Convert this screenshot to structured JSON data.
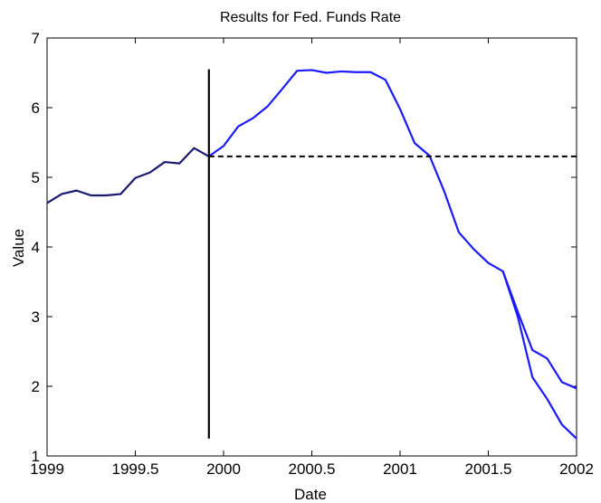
{
  "chart_data": {
    "type": "line",
    "title": "Results for Fed. Funds Rate",
    "xlabel": "Date",
    "ylabel": "Value",
    "xlim": [
      1999,
      2002
    ],
    "ylim": [
      1,
      7
    ],
    "xticks": [
      1999,
      1999.5,
      2000,
      2000.5,
      2001,
      2001.5,
      2002
    ],
    "xtick_labels": [
      "1999",
      "1999.5",
      "2000",
      "2000.5",
      "2001",
      "2001.5",
      "2002"
    ],
    "yticks": [
      1,
      2,
      3,
      4,
      5,
      6,
      7
    ],
    "ytick_labels": [
      "1",
      "2",
      "3",
      "4",
      "5",
      "6",
      "7"
    ],
    "grid": false,
    "colors": {
      "history": "#1a1a6e",
      "forecast": "#1a1aff",
      "reference": "#000000"
    },
    "vertical_line": {
      "x": 1999.917,
      "y_range": [
        1.25,
        6.55
      ]
    },
    "horizontal_reference": {
      "y": 5.3,
      "x_range": [
        1999.917,
        2002
      ]
    },
    "series": [
      {
        "style": "solid",
        "x": [
          1999,
          1999.083,
          1999.167,
          1999.25,
          1999.333,
          1999.417,
          1999.5,
          1999.583,
          1999.667,
          1999.75,
          1999.833,
          1999.917
        ],
        "values": [
          4.63,
          4.76,
          4.81,
          4.74,
          4.74,
          4.76,
          4.99,
          5.07,
          5.22,
          5.2,
          5.42,
          5.3
        ]
      },
      {
        "style": "solid",
        "x": [
          1999.917,
          2000,
          2000.083,
          2000.167,
          2000.25,
          2000.333,
          2000.417,
          2000.5,
          2000.583,
          2000.667,
          2000.75,
          2000.833,
          2000.917,
          2001,
          2001.083,
          2001.167,
          2001.25,
          2001.333,
          2001.417,
          2001.5,
          2001.583,
          2001.667,
          2001.75,
          2001.833,
          2001.917,
          2002
        ],
        "values": [
          5.3,
          5.45,
          5.73,
          5.85,
          6.02,
          6.27,
          6.53,
          6.54,
          6.5,
          6.52,
          6.51,
          6.51,
          6.4,
          5.98,
          5.49,
          5.31,
          4.8,
          4.21,
          3.97,
          3.77,
          3.65,
          3.07,
          2.52,
          2.4,
          2.06,
          1.97
        ]
      },
      {
        "style": "solid",
        "x": [
          2001.583,
          2001.667,
          2001.75,
          2001.833,
          2001.917,
          2002
        ],
        "values": [
          3.65,
          3.0,
          2.13,
          1.82,
          1.45,
          1.25
        ]
      }
    ]
  }
}
